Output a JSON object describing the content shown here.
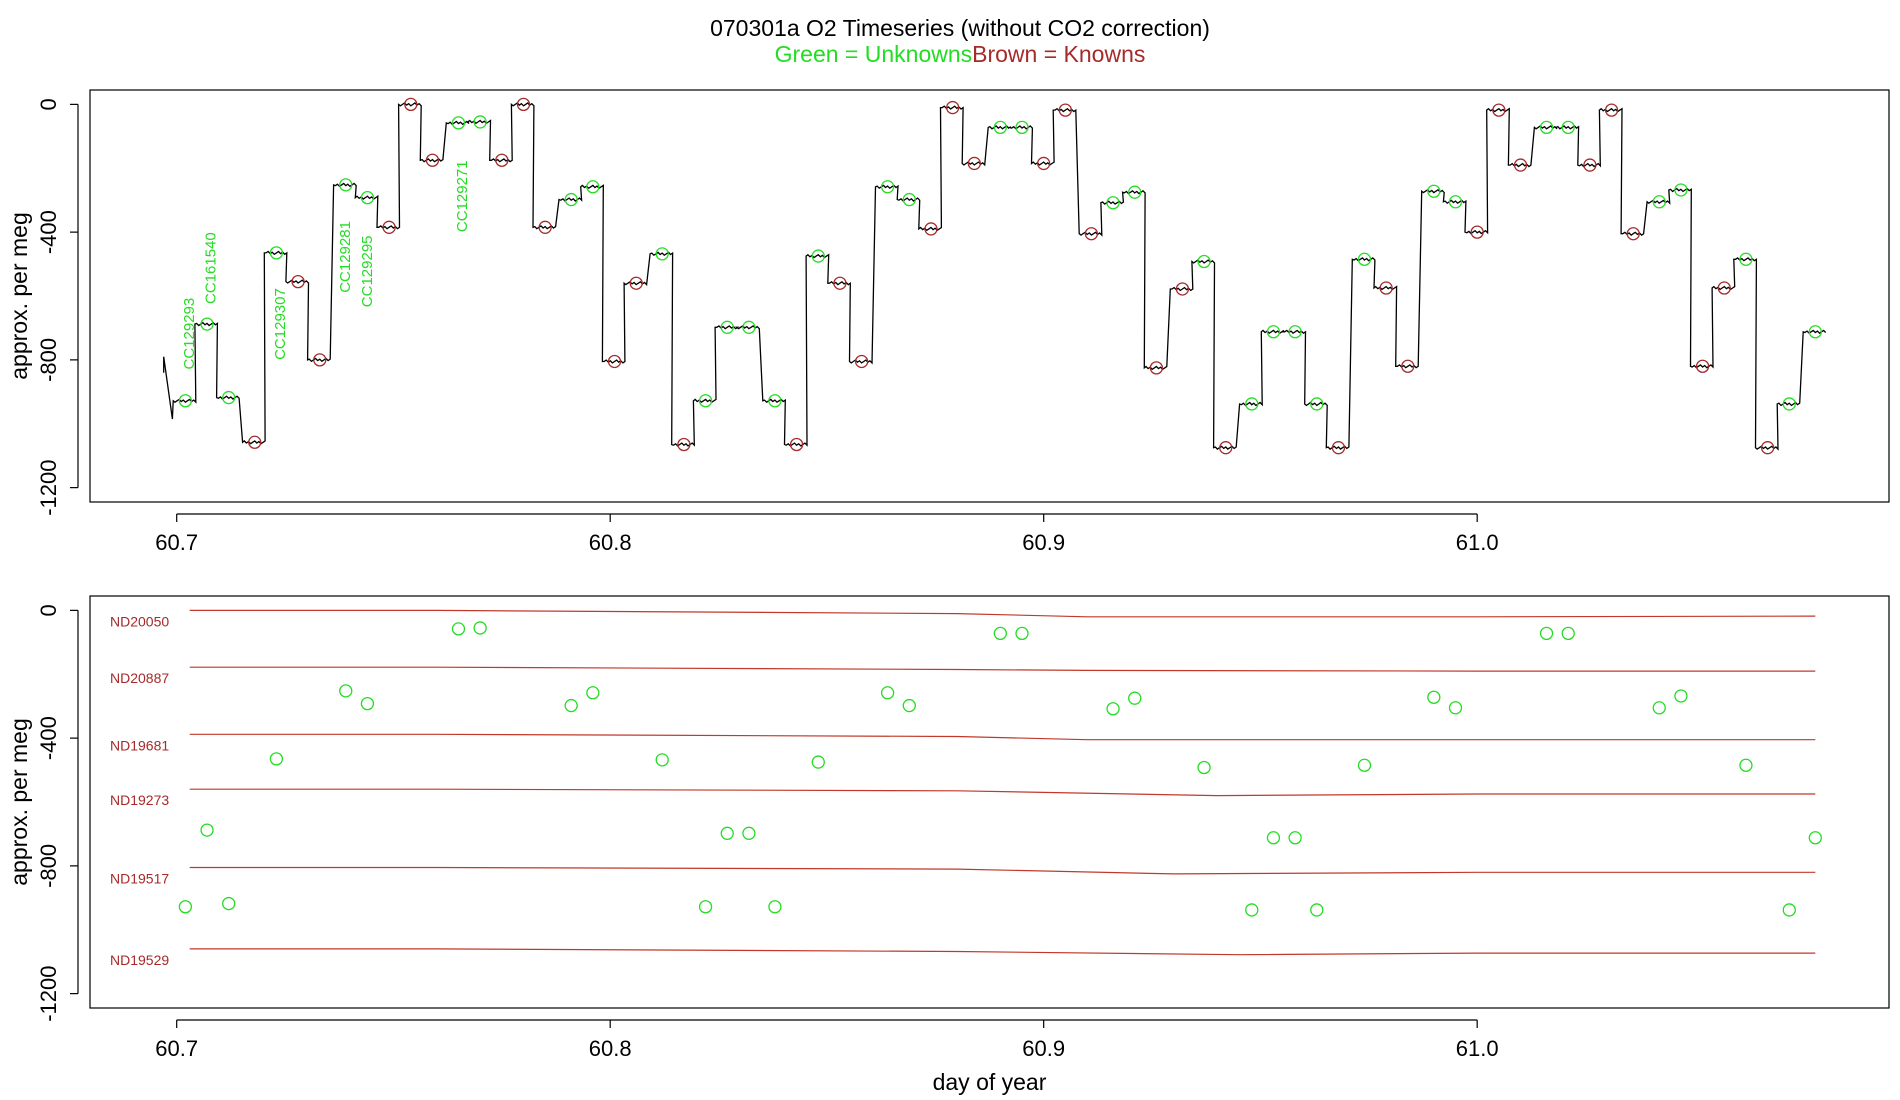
{
  "header": {
    "title": "070301a   O2 Timeseries (without CO2 correction)",
    "subtitle_green": "Green = Unknowns",
    "subtitle_brown": "Brown = Knowns"
  },
  "colors": {
    "unknown": "#22dd22",
    "known": "#a52a2a",
    "line": "#000000",
    "ref_line": "#c0392b"
  },
  "chart_data": [
    {
      "type": "line",
      "panel": "top",
      "title": "070301a   O2 Timeseries (without CO2 correction)",
      "xlabel": "",
      "ylabel": "approx. per meg",
      "xlim": [
        60.68,
        61.095
      ],
      "ylim": [
        -1245,
        45
      ],
      "x_ticks": [
        "60.7",
        "60.8",
        "60.9",
        "61.0"
      ],
      "y_ticks": [
        "0",
        "-400",
        "-800",
        "-1200"
      ],
      "grid": false,
      "series": [
        {
          "name": "Green = Unknowns",
          "points": [
            [
              60.702,
              -928
            ],
            [
              60.707,
              -688
            ],
            [
              60.712,
              -918
            ],
            [
              60.723,
              -465
            ],
            [
              60.739,
              -252
            ],
            [
              60.744,
              -292
            ],
            [
              60.765,
              -58
            ],
            [
              60.77,
              -55
            ],
            [
              60.791,
              -298
            ],
            [
              60.796,
              -258
            ],
            [
              60.812,
              -468
            ],
            [
              60.822,
              -928
            ],
            [
              60.827,
              -698
            ],
            [
              60.832,
              -698
            ],
            [
              60.838,
              -928
            ],
            [
              60.848,
              -475
            ],
            [
              60.864,
              -258
            ],
            [
              60.869,
              -298
            ],
            [
              60.89,
              -72
            ],
            [
              60.895,
              -72
            ],
            [
              60.916,
              -308
            ],
            [
              60.921,
              -275
            ],
            [
              60.937,
              -492
            ],
            [
              60.948,
              -938
            ],
            [
              60.953,
              -712
            ],
            [
              60.958,
              -712
            ],
            [
              60.963,
              -938
            ],
            [
              60.974,
              -485
            ],
            [
              60.99,
              -272
            ],
            [
              60.995,
              -305
            ],
            [
              61.016,
              -72
            ],
            [
              61.021,
              -72
            ],
            [
              61.042,
              -305
            ],
            [
              61.047,
              -268
            ],
            [
              61.062,
              -485
            ],
            [
              61.072,
              -938
            ],
            [
              61.078,
              -712
            ]
          ]
        },
        {
          "name": "Brown = Knowns",
          "points": [
            [
              60.718,
              -1058
            ],
            [
              60.728,
              -555
            ],
            [
              60.733,
              -800
            ],
            [
              60.749,
              -385
            ],
            [
              60.754,
              0
            ],
            [
              60.759,
              -175
            ],
            [
              60.775,
              -175
            ],
            [
              60.78,
              0
            ],
            [
              60.785,
              -385
            ],
            [
              60.801,
              -805
            ],
            [
              60.806,
              -560
            ],
            [
              60.817,
              -1065
            ],
            [
              60.843,
              -1065
            ],
            [
              60.853,
              -560
            ],
            [
              60.858,
              -805
            ],
            [
              60.874,
              -390
            ],
            [
              60.879,
              -10
            ],
            [
              60.884,
              -185
            ],
            [
              60.9,
              -185
            ],
            [
              60.905,
              -18
            ],
            [
              60.911,
              -405
            ],
            [
              60.926,
              -825
            ],
            [
              60.932,
              -578
            ],
            [
              60.942,
              -1075
            ],
            [
              60.968,
              -1075
            ],
            [
              60.979,
              -575
            ],
            [
              60.984,
              -820
            ],
            [
              61.0,
              -400
            ],
            [
              61.005,
              -18
            ],
            [
              61.01,
              -190
            ],
            [
              61.026,
              -190
            ],
            [
              61.031,
              -18
            ],
            [
              61.036,
              -405
            ],
            [
              61.052,
              -820
            ],
            [
              61.057,
              -575
            ],
            [
              61.067,
              -1075
            ]
          ]
        }
      ],
      "annotations": [
        "CC129293",
        "CC161540",
        "CC129307",
        "CC129281",
        "CC129295",
        "CC129271"
      ]
    },
    {
      "type": "scatter",
      "panel": "bottom",
      "xlabel": "day of year",
      "ylabel": "approx. per meg",
      "xlim": [
        60.68,
        61.095
      ],
      "ylim": [
        -1245,
        45
      ],
      "x_ticks": [
        "60.7",
        "60.8",
        "60.9",
        "61.0"
      ],
      "y_ticks": [
        "0",
        "-400",
        "-800",
        "-1200"
      ],
      "grid": false,
      "reference_lines": [
        {
          "name": "ND20050",
          "x": [
            60.703,
            60.76,
            60.88,
            60.91,
            61.0,
            61.078
          ],
          "y": [
            0,
            0,
            -10,
            -20,
            -20,
            -18
          ]
        },
        {
          "name": "ND20887",
          "x": [
            60.703,
            60.76,
            60.88,
            60.91,
            61.0,
            61.078
          ],
          "y": [
            -178,
            -178,
            -185,
            -188,
            -190,
            -190
          ]
        },
        {
          "name": "ND19681",
          "x": [
            60.703,
            60.76,
            60.88,
            60.91,
            61.0,
            61.078
          ],
          "y": [
            -388,
            -388,
            -395,
            -405,
            -405,
            -405
          ]
        },
        {
          "name": "ND19273",
          "x": [
            60.703,
            60.76,
            60.88,
            60.94,
            61.0,
            61.078
          ],
          "y": [
            -560,
            -560,
            -565,
            -580,
            -575,
            -575
          ]
        },
        {
          "name": "ND19517",
          "x": [
            60.703,
            60.76,
            60.88,
            60.93,
            61.0,
            61.078
          ],
          "y": [
            -805,
            -805,
            -810,
            -825,
            -820,
            -820
          ]
        },
        {
          "name": "ND19529",
          "x": [
            60.703,
            60.76,
            60.88,
            60.945,
            61.0,
            61.078
          ],
          "y": [
            -1060,
            -1060,
            -1068,
            -1078,
            -1073,
            -1073
          ]
        }
      ],
      "series": [
        {
          "name": "Green = Unknowns",
          "points": [
            [
              60.702,
              -928
            ],
            [
              60.707,
              -688
            ],
            [
              60.712,
              -918
            ],
            [
              60.723,
              -465
            ],
            [
              60.739,
              -252
            ],
            [
              60.744,
              -292
            ],
            [
              60.765,
              -58
            ],
            [
              60.77,
              -55
            ],
            [
              60.791,
              -298
            ],
            [
              60.796,
              -258
            ],
            [
              60.812,
              -468
            ],
            [
              60.822,
              -928
            ],
            [
              60.827,
              -698
            ],
            [
              60.832,
              -698
            ],
            [
              60.838,
              -928
            ],
            [
              60.848,
              -475
            ],
            [
              60.864,
              -258
            ],
            [
              60.869,
              -298
            ],
            [
              60.89,
              -72
            ],
            [
              60.895,
              -72
            ],
            [
              60.916,
              -308
            ],
            [
              60.921,
              -275
            ],
            [
              60.937,
              -492
            ],
            [
              60.948,
              -938
            ],
            [
              60.953,
              -712
            ],
            [
              60.958,
              -712
            ],
            [
              60.963,
              -938
            ],
            [
              60.974,
              -485
            ],
            [
              60.99,
              -272
            ],
            [
              60.995,
              -305
            ],
            [
              61.016,
              -72
            ],
            [
              61.021,
              -72
            ],
            [
              61.042,
              -305
            ],
            [
              61.047,
              -268
            ],
            [
              61.062,
              -485
            ],
            [
              61.072,
              -938
            ],
            [
              61.078,
              -712
            ]
          ]
        }
      ]
    }
  ]
}
